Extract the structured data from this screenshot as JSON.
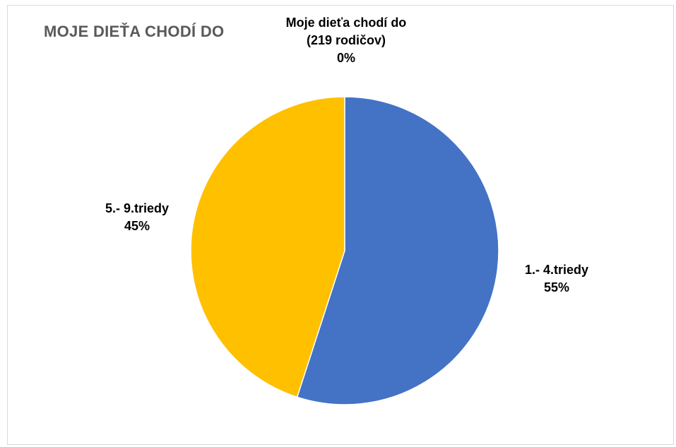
{
  "chart_data": {
    "type": "pie",
    "title": "MOJE DIEŤA CHODÍ DO",
    "start_angle_deg": 0,
    "direction": "clockwise",
    "slices": [
      {
        "label": "1.- 4.triedy",
        "percent": "55%",
        "value": 55,
        "color": "#4472C4"
      },
      {
        "label": "5.- 9.triedy",
        "percent": "45%",
        "value": 45,
        "color": "#FFC000"
      },
      {
        "label": "Moje dieťa chodí do (219 rodičov)",
        "percent": "0%",
        "value": 0,
        "color": "#A5A5A5"
      }
    ],
    "legend": "none"
  }
}
